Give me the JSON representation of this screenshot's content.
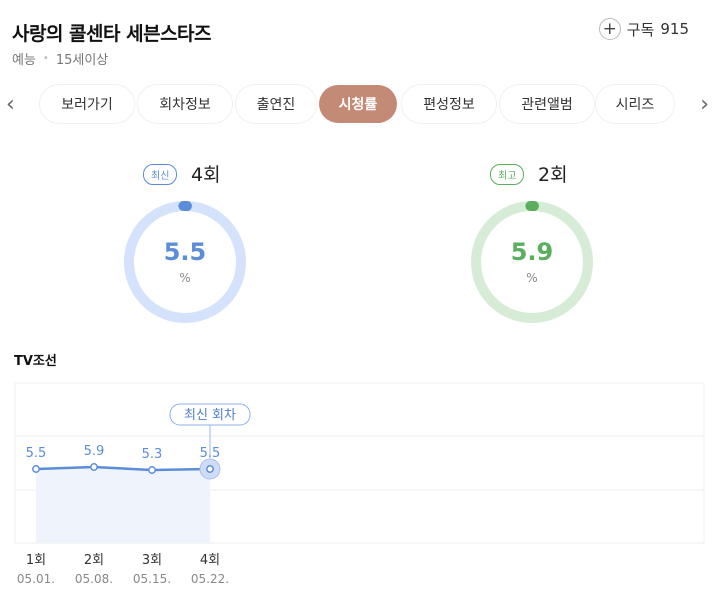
{
  "program": {
    "title": "사랑의 콜센타 세븐스타즈",
    "genre": "예능",
    "rating_age": "15세이상",
    "subscribe_label": "구독",
    "subscribe_count": "915"
  },
  "tabs": [
    {
      "label": "보러가기",
      "active": false
    },
    {
      "label": "회차정보",
      "active": false
    },
    {
      "label": "출연진",
      "active": false
    },
    {
      "label": "시청률",
      "active": true
    },
    {
      "label": "편성정보",
      "active": false
    },
    {
      "label": "관련앨범",
      "active": false
    },
    {
      "label": "시리즈",
      "active": false
    }
  ],
  "icons": {
    "prev": "chevron-left-icon",
    "next": "chevron-right-icon",
    "subscribe": "plus-icon"
  },
  "latest": {
    "badge": "최신",
    "episode": "4회",
    "value": "5.5",
    "unit": "%",
    "color": "#5b8dd9",
    "track_color": "#d5e2fb"
  },
  "best": {
    "badge": "최고",
    "episode": "2회",
    "value": "5.9",
    "unit": "%",
    "color": "#5aae5e",
    "track_color": "#d6ecd6"
  },
  "broadcaster": "TV조선",
  "chart_data": {
    "type": "line",
    "categories": [
      "1회",
      "2회",
      "3회",
      "4회"
    ],
    "dates": [
      "05.01.",
      "05.08.",
      "05.15.",
      "05.22."
    ],
    "series": [
      {
        "values": [
          5.5,
          5.9,
          5.3,
          5.5
        ],
        "color": "#5b8dd9"
      }
    ],
    "data_labels": [
      "5.5",
      "5.9",
      "5.3",
      "5.5"
    ],
    "annotation": "최신 회차",
    "grid": true
  }
}
